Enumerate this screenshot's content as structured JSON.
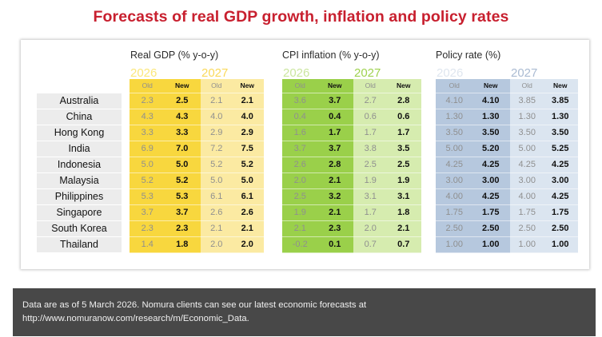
{
  "title": "Forecasts of real GDP growth, inflation and policy rates",
  "colors": {
    "title": "#c8202f",
    "gdp_2026": "#f8d73e",
    "gdp_2027": "#fbeaa2",
    "cpi_2026": "#9ad04a",
    "cpi_2027": "#d6ecaf",
    "policy_2026": "#b6c8de",
    "policy_2027": "#dbe5f0",
    "footer_bg": "#484848"
  },
  "groups": [
    {
      "key": "gdp",
      "label": "Real GDP (% y-o-y)"
    },
    {
      "key": "cpi",
      "label": "CPI inflation (% y-o-y)"
    },
    {
      "key": "policy",
      "label": "Policy rate (%)"
    }
  ],
  "years": [
    "2026",
    "2027"
  ],
  "subheaders": {
    "old": "Old",
    "new": "New"
  },
  "countries": [
    "Australia",
    "China",
    "Hong Kong",
    "India",
    "Indonesia",
    "Malaysia",
    "Philippines",
    "Singapore",
    "South Korea",
    "Thailand"
  ],
  "table": {
    "gdp": {
      "2026": {
        "old": [
          "2.3",
          "4.3",
          "3.3",
          "6.9",
          "5.0",
          "5.2",
          "5.3",
          "3.7",
          "2.3",
          "1.4"
        ],
        "new": [
          "2.5",
          "4.3",
          "3.3",
          "7.0",
          "5.0",
          "5.2",
          "5.3",
          "3.7",
          "2.3",
          "1.8"
        ]
      },
      "2027": {
        "old": [
          "2.1",
          "4.0",
          "2.9",
          "7.2",
          "5.2",
          "5.0",
          "6.1",
          "2.6",
          "2.1",
          "2.0"
        ],
        "new": [
          "2.1",
          "4.0",
          "2.9",
          "7.5",
          "5.2",
          "5.0",
          "6.1",
          "2.6",
          "2.1",
          "2.0"
        ]
      }
    },
    "cpi": {
      "2026": {
        "old": [
          "3.6",
          "0.4",
          "1.6",
          "3.7",
          "2.6",
          "2.0",
          "2.5",
          "1.9",
          "2.1",
          "-0.2"
        ],
        "new": [
          "3.7",
          "0.4",
          "1.7",
          "3.7",
          "2.8",
          "2.1",
          "3.2",
          "2.1",
          "2.3",
          "0.1"
        ]
      },
      "2027": {
        "old": [
          "2.7",
          "0.6",
          "1.7",
          "3.8",
          "2.5",
          "1.9",
          "3.1",
          "1.7",
          "2.0",
          "0.7"
        ],
        "new": [
          "2.8",
          "0.6",
          "1.7",
          "3.5",
          "2.5",
          "1.9",
          "3.1",
          "1.8",
          "2.1",
          "0.7"
        ]
      }
    },
    "policy": {
      "2026": {
        "old": [
          "4.10",
          "1.30",
          "3.50",
          "5.00",
          "4.25",
          "3.00",
          "4.00",
          "1.75",
          "2.50",
          "1.00"
        ],
        "new": [
          "4.10",
          "1.30",
          "3.50",
          "5.20",
          "4.25",
          "3.00",
          "4.25",
          "1.75",
          "2.50",
          "1.00"
        ]
      },
      "2027": {
        "old": [
          "3.85",
          "1.30",
          "3.50",
          "5.00",
          "4.25",
          "3.00",
          "4.00",
          "1.75",
          "2.50",
          "1.00"
        ],
        "new": [
          "3.85",
          "1.30",
          "3.50",
          "5.25",
          "4.25",
          "3.00",
          "4.25",
          "1.75",
          "2.50",
          "1.00"
        ]
      }
    }
  },
  "footer": {
    "line1": "Data are as of 5 March 2026. Nomura clients can see our latest economic forecasts at",
    "line2": "http://www.nomuranow.com/research/m/Economic_Data."
  }
}
